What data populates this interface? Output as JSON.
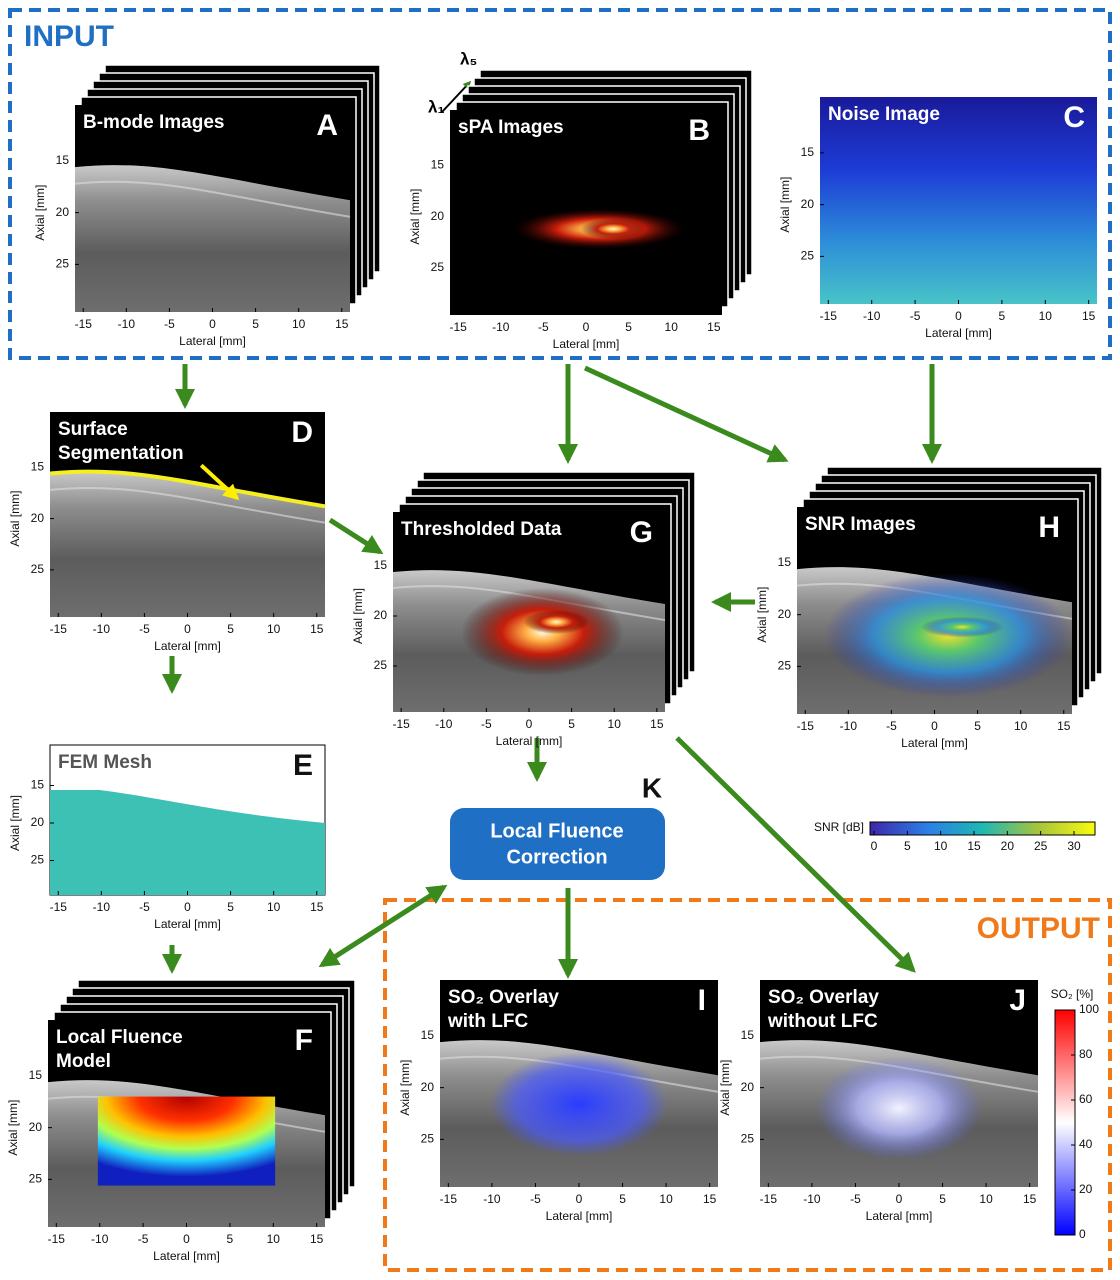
{
  "input_label": "INPUT",
  "output_label": "OUTPUT",
  "wavelengths": [
    "λ₁",
    "λ₅"
  ],
  "panels": [
    {
      "letter": "A",
      "title": [
        "B-mode Images"
      ],
      "xlabel": "Lateral [mm]",
      "ylabel": "Axial [mm]",
      "xticks": [
        -15,
        -10,
        -5,
        0,
        5,
        10,
        15
      ],
      "yticks": [
        15,
        20,
        25
      ]
    },
    {
      "letter": "B",
      "title": [
        "sPA Images"
      ],
      "xlabel": "Lateral [mm]",
      "ylabel": "Axial [mm]",
      "xticks": [
        -15,
        -10,
        -5,
        0,
        5,
        10,
        15
      ],
      "yticks": [
        15,
        20,
        25
      ]
    },
    {
      "letter": "C",
      "title": [
        "Noise Image"
      ],
      "xlabel": "Lateral [mm]",
      "ylabel": "Axial [mm]",
      "xticks": [
        -15,
        -10,
        -5,
        0,
        5,
        10,
        15
      ],
      "yticks": [
        15,
        20,
        25
      ]
    },
    {
      "letter": "D",
      "title": [
        "Surface",
        "Segmentation"
      ],
      "xlabel": "Lateral [mm]",
      "ylabel": "Axial [mm]",
      "xticks": [
        -15,
        -10,
        -5,
        0,
        5,
        10,
        15
      ],
      "yticks": [
        15,
        20,
        25
      ]
    },
    {
      "letter": "E",
      "title": [
        "FEM Mesh"
      ],
      "xlabel": "Lateral [mm]",
      "ylabel": "Axial [mm]",
      "xticks": [
        -15,
        -10,
        -5,
        0,
        5,
        10,
        15
      ],
      "yticks": [
        15,
        20,
        25
      ]
    },
    {
      "letter": "F",
      "title": [
        "Local Fluence",
        "Model"
      ],
      "xlabel": "Lateral [mm]",
      "ylabel": "Axial [mm]",
      "xticks": [
        -15,
        -10,
        -5,
        0,
        5,
        10,
        15
      ],
      "yticks": [
        15,
        20,
        25
      ]
    },
    {
      "letter": "G",
      "title": [
        "Thresholded Data"
      ],
      "xlabel": "Lateral [mm]",
      "ylabel": "Axial [mm]",
      "xticks": [
        -15,
        -10,
        -5,
        0,
        5,
        10,
        15
      ],
      "yticks": [
        15,
        20,
        25
      ]
    },
    {
      "letter": "H",
      "title": [
        "SNR Images"
      ],
      "xlabel": "Lateral [mm]",
      "ylabel": "Axial [mm]",
      "xticks": [
        -15,
        -10,
        -5,
        0,
        5,
        10,
        15
      ],
      "yticks": [
        15,
        20,
        25
      ]
    },
    {
      "letter": "I",
      "title": [
        "SO₂ Overlay",
        "with LFC"
      ],
      "xlabel": "Lateral [mm]",
      "ylabel": "Axial [mm]",
      "xticks": [
        -15,
        -10,
        -5,
        0,
        5,
        10,
        15
      ],
      "yticks": [
        15,
        20,
        25
      ]
    },
    {
      "letter": "J",
      "title": [
        "SO₂ Overlay",
        "without LFC"
      ],
      "xlabel": "Lateral [mm]",
      "ylabel": "Axial [mm]",
      "xticks": [
        -15,
        -10,
        -5,
        0,
        5,
        10,
        15
      ],
      "yticks": [
        15,
        20,
        25
      ]
    }
  ],
  "process": {
    "letter": "K",
    "label": [
      "Local Fluence",
      "Correction"
    ]
  },
  "snr_colorbar": {
    "label": "SNR [dB]",
    "ticks": [
      0,
      5,
      10,
      15,
      20,
      25,
      30
    ]
  },
  "so2_colorbar": {
    "label": "SO₂ [%]",
    "ticks": [
      0,
      20,
      40,
      60,
      80,
      100
    ]
  }
}
